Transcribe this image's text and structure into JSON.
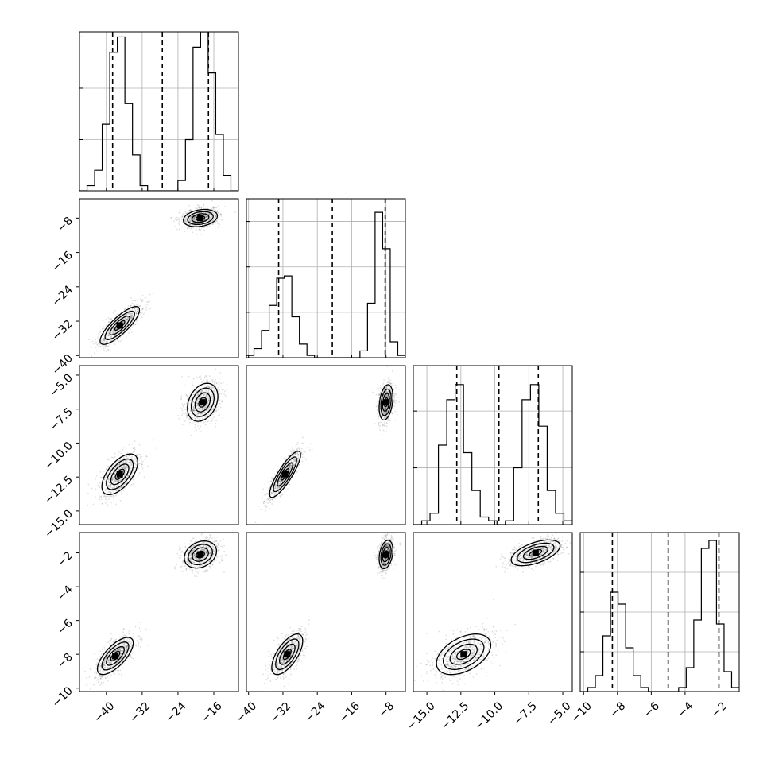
{
  "chart_data": {
    "type": "corner",
    "title": "",
    "params": [
      {
        "range": [
          -46.0,
          -10.5
        ],
        "ticks": [
          -40,
          -32,
          -24,
          -16
        ],
        "tick_labels": [
          "−40",
          "−32",
          "−24",
          "−16"
        ]
      },
      {
        "range": [
          -40.5,
          -3.5
        ],
        "ticks": [
          -40,
          -32,
          -24,
          -16,
          -8
        ],
        "tick_labels": [
          "−40",
          "−32",
          "−24",
          "−16",
          "−8"
        ]
      },
      {
        "range": [
          -16.0,
          -4.3
        ],
        "ticks": [
          -15.0,
          -12.5,
          -10.0,
          -7.5,
          -5.0
        ],
        "tick_labels": [
          "−15.0",
          "−12.5",
          "−10.0",
          "−7.5",
          "−5.0"
        ]
      },
      {
        "range": [
          -10.2,
          -0.8
        ],
        "ticks": [
          -10,
          -8,
          -6,
          -4,
          -2
        ],
        "tick_labels": [
          "−10",
          "−8",
          "−6",
          "−4",
          "−2"
        ]
      }
    ],
    "histograms": [
      {
        "param": 0,
        "counts": [
          0,
          1,
          4,
          13,
          27,
          30,
          17,
          7,
          1,
          0,
          0,
          0,
          0,
          2,
          10,
          28,
          31,
          23,
          11,
          3,
          0
        ],
        "max": 31,
        "quantiles": [
          -38.6,
          -27.5,
          -17.2
        ]
      },
      {
        "param": 1,
        "counts": [
          1,
          4,
          12,
          23,
          35,
          36,
          18,
          6,
          1,
          0,
          0,
          0,
          0,
          0,
          0,
          3,
          24,
          64,
          48,
          7,
          1
        ],
        "max": 70,
        "quantiles": [
          -33.0,
          -20.5,
          -8.2
        ]
      },
      {
        "param": 2,
        "counts": [
          0,
          1,
          3,
          21,
          33,
          37,
          19,
          9,
          2,
          1,
          0,
          1,
          15,
          33,
          37,
          26,
          9,
          3,
          1
        ],
        "max": 42,
        "quantiles": [
          -12.8,
          -9.7,
          -6.8
        ]
      },
      {
        "param": 3,
        "counts": [
          0,
          1,
          4,
          14,
          25,
          22,
          11,
          4,
          1,
          0,
          0,
          0,
          0,
          1,
          6,
          18,
          36,
          38,
          17,
          5,
          1
        ],
        "max": 40,
        "quantiles": [
          -8.3,
          -5.0,
          -2.0
        ]
      }
    ],
    "pairs": [
      {
        "row": 1,
        "col": 0,
        "modes": [
          {
            "cx": -37.0,
            "cy": -33.0,
            "sx": 2.2,
            "sy": 2.2,
            "rho": 0.82
          },
          {
            "cx": -19.0,
            "cy": -8.0,
            "sx": 1.9,
            "sy": 1.0,
            "rho": 0.25
          }
        ]
      },
      {
        "row": 2,
        "col": 0,
        "modes": [
          {
            "cx": -37.0,
            "cy": -12.3,
            "sx": 2.0,
            "sy": 0.75,
            "rho": 0.6
          },
          {
            "cx": -18.5,
            "cy": -7.0,
            "sx": 1.7,
            "sy": 0.7,
            "rho": 0.3
          }
        ]
      },
      {
        "row": 2,
        "col": 1,
        "modes": [
          {
            "cx": -31.5,
            "cy": -12.3,
            "sx": 1.8,
            "sy": 0.85,
            "rho": 0.85
          },
          {
            "cx": -8.0,
            "cy": -7.0,
            "sx": 0.8,
            "sy": 0.65,
            "rho": 0.3
          }
        ]
      },
      {
        "row": 3,
        "col": 0,
        "modes": [
          {
            "cx": -38.0,
            "cy": -8.1,
            "sx": 2.0,
            "sy": 0.55,
            "rho": 0.7
          },
          {
            "cx": -19.0,
            "cy": -2.1,
            "sx": 1.8,
            "sy": 0.4,
            "rho": 0.25
          }
        ]
      },
      {
        "row": 3,
        "col": 1,
        "modes": [
          {
            "cx": -31.0,
            "cy": -8.0,
            "sx": 1.8,
            "sy": 0.6,
            "rho": 0.65
          },
          {
            "cx": -8.0,
            "cy": -2.1,
            "sx": 0.8,
            "sy": 0.42,
            "rho": 0.3
          }
        ]
      },
      {
        "row": 3,
        "col": 2,
        "modes": [
          {
            "cx": -12.3,
            "cy": -8.0,
            "sx": 1.0,
            "sy": 0.6,
            "rho": 0.45
          },
          {
            "cx": -7.0,
            "cy": -2.0,
            "sx": 0.9,
            "sy": 0.38,
            "rho": 0.55
          }
        ]
      }
    ],
    "grid": true,
    "legend": "none"
  }
}
